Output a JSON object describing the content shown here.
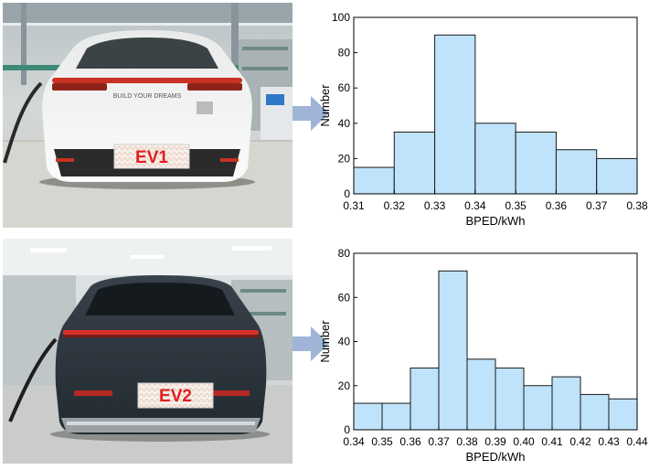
{
  "panels": [
    {
      "plate_label": "EV1",
      "car_badge": "BUILD YOUR DREAMS",
      "arrow_color": "#9fb4d6",
      "photo": {
        "car_color": "#f0f0ef",
        "light_color": "#c83222",
        "floor_color": "#d6d6d1"
      }
    },
    {
      "plate_label": "EV2",
      "car_badge": "",
      "arrow_color": "#9fb4d6",
      "photo": {
        "car_color": "#2a323a",
        "light_color": "#d8322a",
        "floor_color": "#c9ccc9"
      }
    }
  ],
  "chart_data": [
    {
      "type": "bar",
      "xlabel": "BPED/kWh",
      "ylabel": "Number",
      "bin_edges": [
        0.31,
        0.32,
        0.33,
        0.34,
        0.35,
        0.36,
        0.37,
        0.38
      ],
      "values": [
        15,
        35,
        90,
        40,
        35,
        25,
        20
      ],
      "xlim": [
        0.31,
        0.38
      ],
      "ylim": [
        0,
        100
      ],
      "xticks": [
        "0.31",
        "0.32",
        "0.33",
        "0.34",
        "0.35",
        "0.36",
        "0.37",
        "0.38"
      ],
      "yticks": [
        "0",
        "20",
        "40",
        "60",
        "80",
        "100"
      ],
      "bar_color": "#bfe3fb",
      "edge_color": "#1a1a1a",
      "grid": false
    },
    {
      "type": "bar",
      "xlabel": "BPED/kWh",
      "ylabel": "Number",
      "bin_edges": [
        0.34,
        0.35,
        0.36,
        0.37,
        0.38,
        0.39,
        0.4,
        0.41,
        0.42,
        0.43,
        0.44
      ],
      "values": [
        12,
        12,
        28,
        72,
        32,
        28,
        20,
        24,
        16,
        14
      ],
      "xlim": [
        0.34,
        0.44
      ],
      "ylim": [
        0,
        80
      ],
      "xticks": [
        "0.34",
        "0.35",
        "0.36",
        "0.37",
        "0.38",
        "0.39",
        "0.40",
        "0.41",
        "0.42",
        "0.43",
        "0.44"
      ],
      "yticks": [
        "0",
        "20",
        "40",
        "60",
        "80"
      ],
      "bar_color": "#bfe3fb",
      "edge_color": "#1a1a1a",
      "grid": false
    }
  ]
}
